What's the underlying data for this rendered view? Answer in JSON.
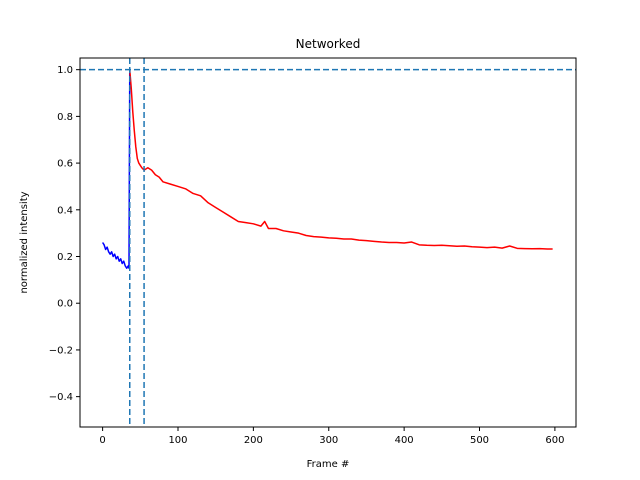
{
  "chart_data": {
    "type": "line",
    "title": "Networked",
    "xlabel": "Frame #",
    "ylabel": "normalized intensity",
    "xlim": [
      -30,
      628
    ],
    "ylim": [
      -0.53,
      1.05
    ],
    "x_ticks": [
      0,
      100,
      200,
      300,
      400,
      500,
      600
    ],
    "y_ticks": [
      -0.4,
      -0.2,
      0.0,
      0.2,
      0.4,
      0.6,
      0.8,
      1.0
    ],
    "y_tick_labels": [
      "−0.4",
      "−0.2",
      "0.0",
      "0.2",
      "0.4",
      "0.6",
      "0.8",
      "1.0"
    ],
    "grid": false,
    "series": [
      {
        "color": "#0000ff",
        "x": [
          0,
          2,
          4,
          6,
          8,
          10,
          12,
          14,
          16,
          18,
          20,
          22,
          24,
          26,
          28,
          30,
          32,
          34,
          35,
          36
        ],
        "y": [
          0.26,
          0.25,
          0.23,
          0.24,
          0.22,
          0.21,
          0.22,
          0.2,
          0.21,
          0.19,
          0.2,
          0.18,
          0.19,
          0.17,
          0.18,
          0.16,
          0.15,
          0.16,
          0.15,
          1.0
        ]
      },
      {
        "color": "#ff0000",
        "x": [
          36,
          38,
          40,
          42,
          44,
          46,
          48,
          50,
          52,
          55,
          60,
          65,
          70,
          75,
          80,
          90,
          100,
          110,
          120,
          130,
          140,
          150,
          160,
          170,
          180,
          190,
          200,
          210,
          215,
          220,
          230,
          240,
          250,
          260,
          270,
          280,
          290,
          300,
          310,
          320,
          330,
          340,
          350,
          360,
          370,
          380,
          390,
          400,
          410,
          420,
          430,
          440,
          450,
          460,
          470,
          480,
          490,
          500,
          510,
          520,
          530,
          540,
          550,
          560,
          570,
          580,
          590,
          597
        ],
        "y": [
          1.0,
          0.92,
          0.82,
          0.74,
          0.67,
          0.62,
          0.6,
          0.59,
          0.58,
          0.57,
          0.58,
          0.57,
          0.55,
          0.54,
          0.52,
          0.51,
          0.5,
          0.49,
          0.47,
          0.46,
          0.43,
          0.41,
          0.39,
          0.37,
          0.35,
          0.345,
          0.34,
          0.33,
          0.35,
          0.32,
          0.32,
          0.31,
          0.305,
          0.3,
          0.29,
          0.285,
          0.283,
          0.28,
          0.278,
          0.275,
          0.275,
          0.27,
          0.268,
          0.265,
          0.262,
          0.26,
          0.26,
          0.258,
          0.262,
          0.25,
          0.248,
          0.247,
          0.248,
          0.246,
          0.244,
          0.245,
          0.242,
          0.24,
          0.238,
          0.24,
          0.236,
          0.245,
          0.235,
          0.234,
          0.233,
          0.234,
          0.232,
          0.232
        ]
      }
    ],
    "reference_lines": {
      "color": "#1f77b4",
      "horizontal_y": [
        1.0
      ],
      "vertical_x": [
        36,
        55
      ]
    }
  }
}
